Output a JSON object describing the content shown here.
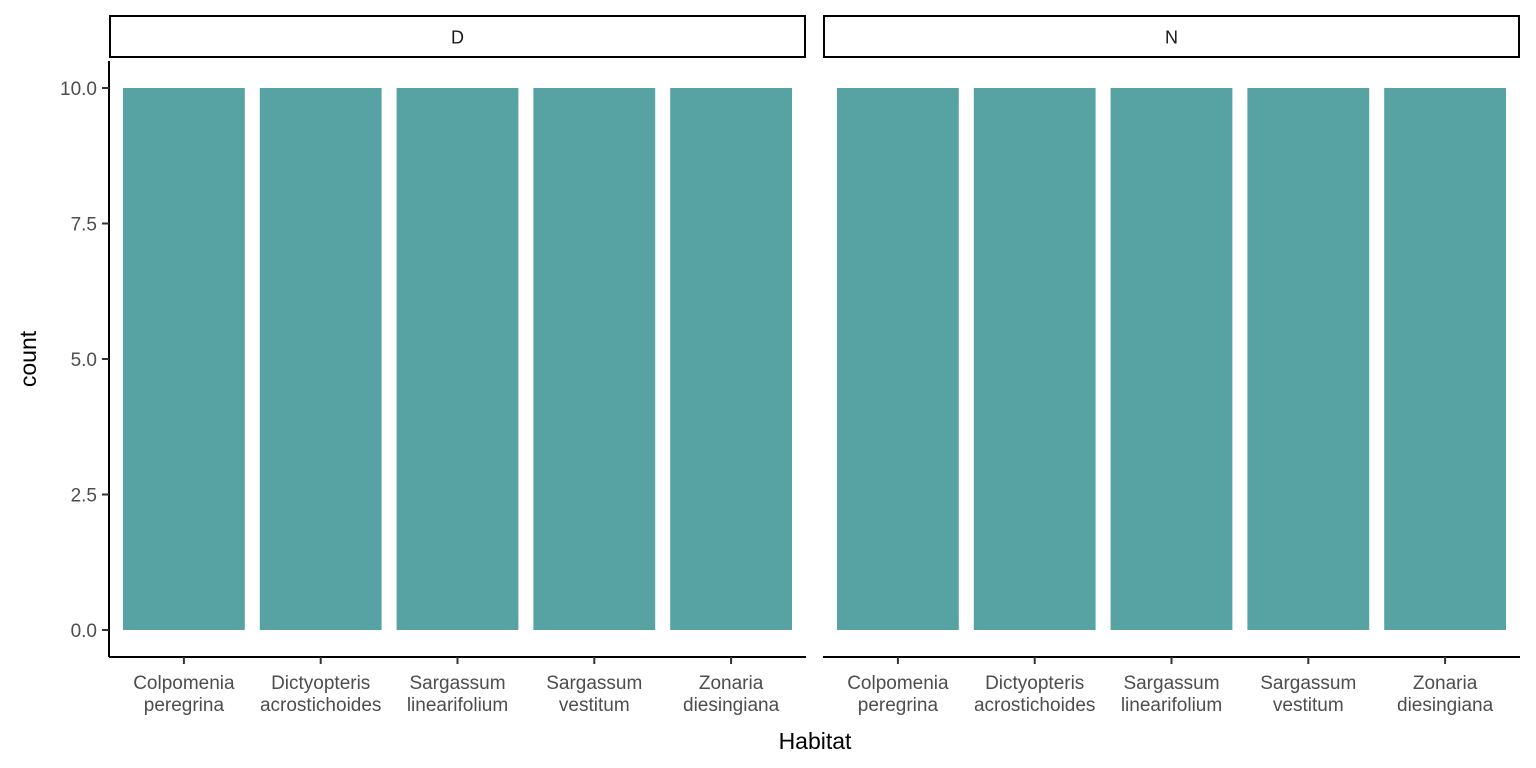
{
  "chart_data": {
    "type": "bar",
    "xlabel": "Habitat",
    "ylabel": "count",
    "ylim": [
      0,
      10.5
    ],
    "yticks": [
      0.0,
      2.5,
      5.0,
      7.5,
      10.0
    ],
    "ytick_labels": [
      "0.0",
      "2.5",
      "5.0",
      "7.5",
      "10.0"
    ],
    "categories": [
      [
        "Colpomenia",
        "peregrina"
      ],
      [
        "Dictyopteris",
        "acrostichoides"
      ],
      [
        "Sargassum",
        "linearifolium"
      ],
      [
        "Sargassum",
        "vestitum"
      ],
      [
        "Zonaria",
        "diesingiana"
      ]
    ],
    "panels": [
      {
        "label": "D",
        "values": [
          10,
          10,
          10,
          10,
          10
        ]
      },
      {
        "label": "N",
        "values": [
          10,
          10,
          10,
          10,
          10
        ]
      }
    ],
    "bar_color": "#57a3a3",
    "grid": false,
    "legend": "none"
  }
}
